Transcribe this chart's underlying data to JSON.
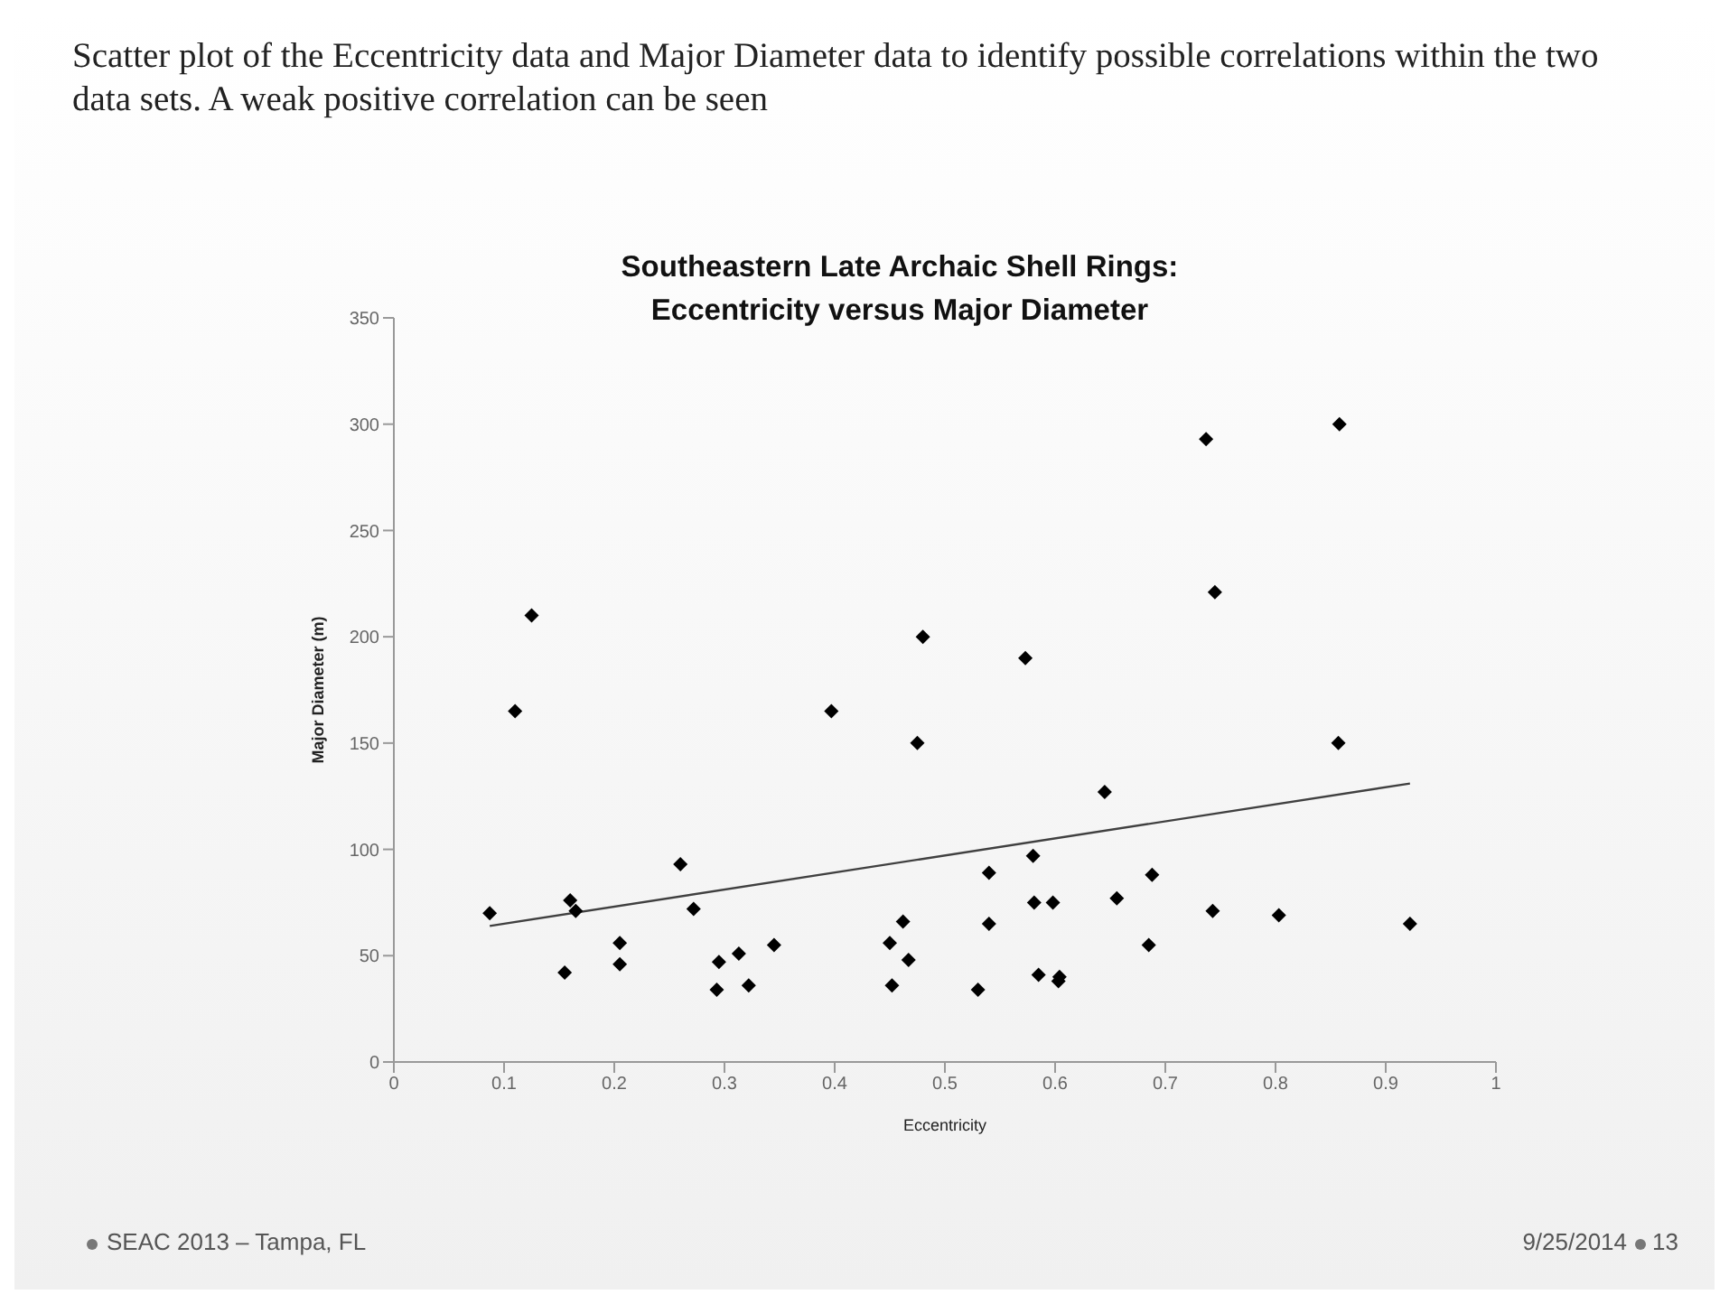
{
  "chart_data": {
    "type": "scatter",
    "title": "Southeastern Late Archaic Shell Rings: Eccentricity versus Major Diameter",
    "subtitle": "Scatter plot of the Eccentricity data and Major Diameter data to identify possible correlations within the two data sets. A weak positive correlation can be seen",
    "xlabel": "Eccentricity",
    "ylabel": "Major Diameter (m)",
    "series": [
      {
        "color": "#000000",
        "marker": "diamond",
        "x": [
          0.087,
          0.11,
          0.125,
          0.155,
          0.16,
          0.165,
          0.205,
          0.205,
          0.26,
          0.272,
          0.293,
          0.295,
          0.313,
          0.322,
          0.345,
          0.397,
          0.45,
          0.452,
          0.462,
          0.467,
          0.475,
          0.48,
          0.53,
          0.54,
          0.54,
          0.573,
          0.58,
          0.581,
          0.585,
          0.598,
          0.603,
          0.604,
          0.645,
          0.656,
          0.685,
          0.688,
          0.737,
          0.743,
          0.745,
          0.803,
          0.857,
          0.858,
          0.922
        ],
        "values": [
          70,
          165,
          210,
          42,
          76,
          71,
          46,
          56,
          93,
          72,
          34,
          47,
          51,
          36,
          55,
          165,
          56,
          36,
          66,
          48,
          150,
          200,
          34,
          89,
          65,
          190,
          97,
          75,
          41,
          75,
          38,
          40,
          127,
          77,
          55,
          88,
          293,
          71,
          221,
          69,
          150,
          300,
          65
        ]
      },
      {
        "type": "line",
        "marker": "none",
        "color": "#404040",
        "x": [
          0.087,
          0.922
        ],
        "values": [
          64,
          131
        ]
      }
    ],
    "grid": false,
    "xlim": [
      0,
      1
    ],
    "xticks": [
      0,
      0.1,
      0.2,
      0.3,
      0.4,
      0.5,
      0.6,
      0.7,
      0.8,
      0.9,
      1
    ],
    "ylim": [
      0,
      350
    ],
    "yticks": [
      0,
      50,
      100,
      150,
      200,
      250,
      300,
      350
    ],
    "annotations": [
      "SEAC 2013 – Tampa, FL",
      "9/25/2014",
      "13"
    ]
  }
}
